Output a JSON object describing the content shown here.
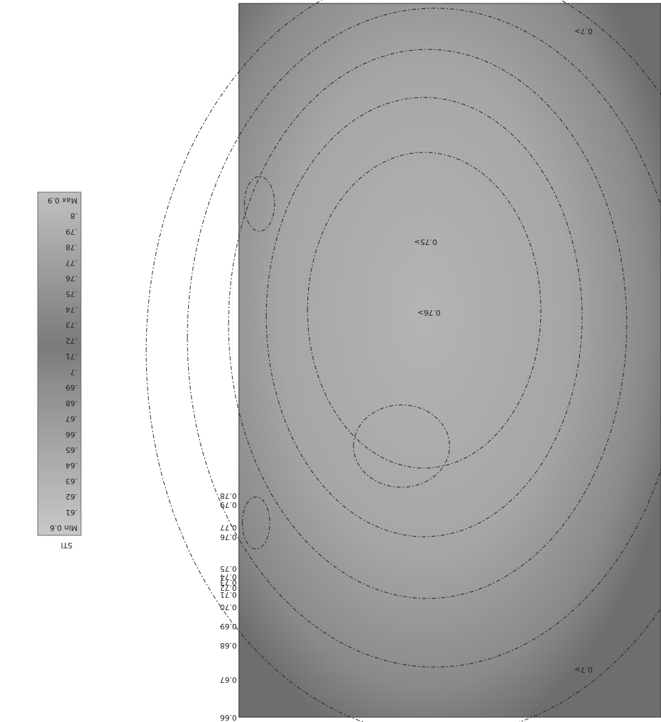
{
  "legend": {
    "title": "STI",
    "labels": [
      "Min 0.6",
      ".61",
      ".62",
      ".63",
      ".64",
      ".65",
      ".66",
      ".67",
      ".68",
      ".69",
      ".7",
      ".71",
      ".72",
      ".73",
      ".74",
      ".75",
      ".76",
      ".77",
      ".78",
      ".79",
      ".8",
      "Max 0.9"
    ]
  },
  "axis_labels": [
    "0.66",
    "0.67",
    "0.68",
    "0.69",
    "0.70",
    "0.71",
    "0.72",
    "0.73",
    "0.74",
    "0.75",
    "0.76",
    "0.77",
    "0.79",
    "0.78"
  ],
  "contour_labels": [
    "0.7>",
    "0.76>",
    "0.75>",
    "0.7>"
  ]
}
